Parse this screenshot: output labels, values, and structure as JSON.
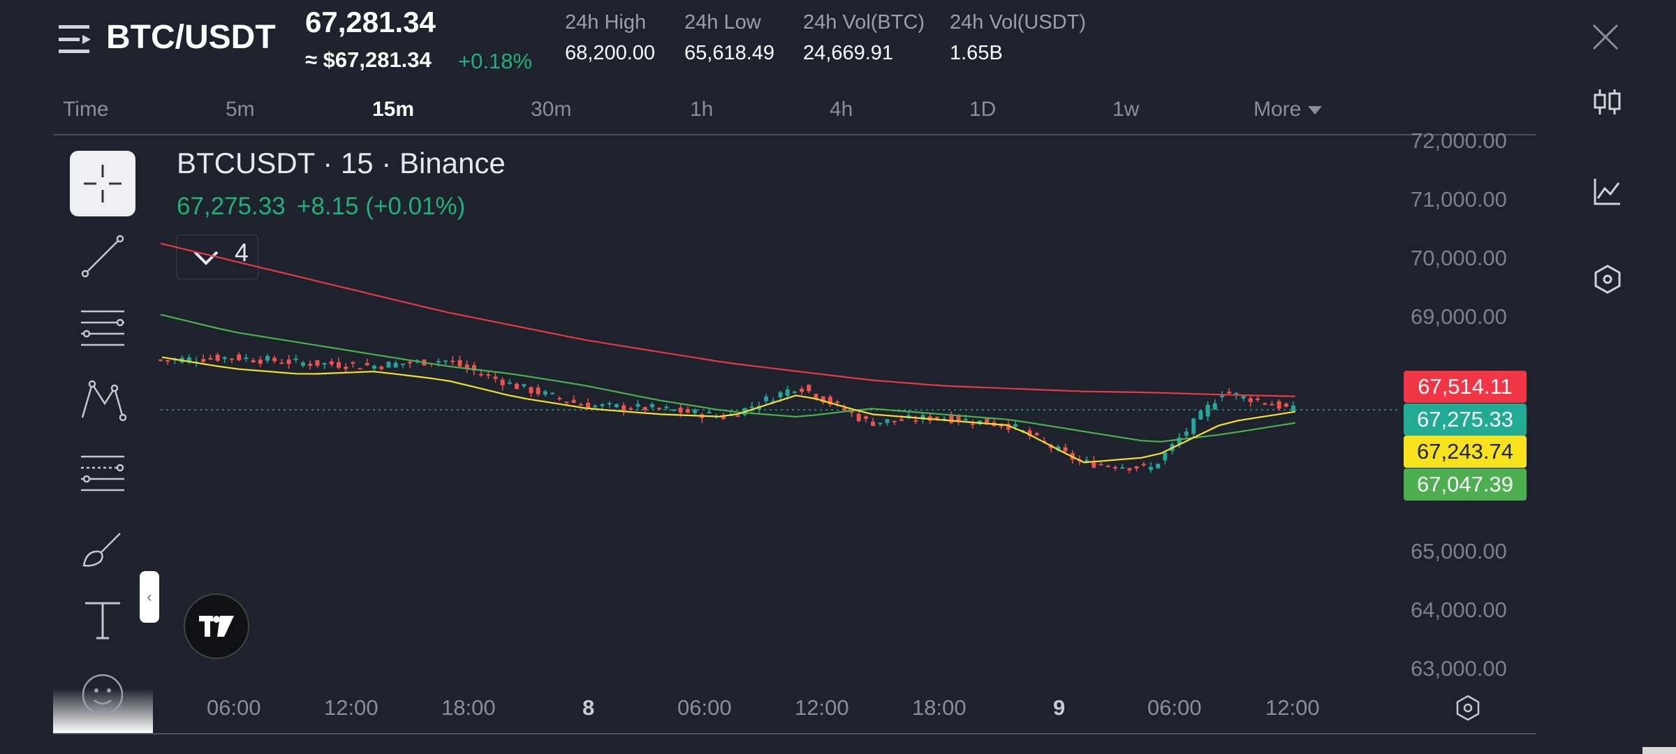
{
  "header": {
    "title": "BTC/USDT",
    "last_price": "67,281.34",
    "usd_price": "≈ $67,281.34",
    "change_pct": "+0.18%",
    "stats": [
      {
        "label": "24h High",
        "value": "68,200.00"
      },
      {
        "label": "24h Low",
        "value": "65,618.49"
      },
      {
        "label": "24h Vol(BTC)",
        "value": "24,669.91"
      },
      {
        "label": "24h Vol(USDT)",
        "value": "1.65B"
      }
    ]
  },
  "intervals": {
    "time_label": "Time",
    "items": [
      "5m",
      "15m",
      "30m",
      "1h",
      "4h",
      "1D",
      "1w"
    ],
    "active": "15m",
    "more_label": "More"
  },
  "chart_header": {
    "symbol": "BTCUSDT · 15 · Binance",
    "last": "67,275.33",
    "change": "+8.15 (+0.01%)",
    "indicator_count": "4"
  },
  "icons": {
    "menu": "menu-icon",
    "close": "close-icon",
    "candle": "candlestick-icon",
    "line_chart": "line-chart-icon",
    "settings": "settings-icon"
  },
  "colors": {
    "background": "#1e222d",
    "up": "#26a69a",
    "down": "#ef5350",
    "ma_red": "#e53946",
    "ma_green": "#4caf50",
    "ma_yellow": "#f5e12a"
  },
  "chart_data": {
    "type": "line",
    "title": "",
    "y_axis_labels": [
      "72,000.00",
      "71,000.00",
      "70,000.00",
      "69,000.00",
      "65,000.00",
      "64,000.00",
      "63,000.00"
    ],
    "ylim": [
      62700,
      72000
    ],
    "x_labels": [
      "06:00",
      "12:00",
      "18:00",
      "8",
      "06:00",
      "12:00",
      "18:00",
      "9",
      "06:00",
      "12:00"
    ],
    "price_tags": [
      {
        "value": "67,514.11",
        "color": "#f23645",
        "text_color": "#ffffff"
      },
      {
        "value": "67,275.33",
        "color": "#22ab94",
        "text_color": "#ffffff"
      },
      {
        "value": "67,243.74",
        "color": "#f7e21b",
        "text_color": "#1e222d"
      },
      {
        "value": "67,047.39",
        "color": "#4caf50",
        "text_color": "#ffffff"
      }
    ],
    "last_price": 67275.33,
    "series": [
      {
        "name": "MA red",
        "color": "#e53946",
        "values": [
          70200,
          69900,
          69600,
          69300,
          69000,
          68750,
          68500,
          68300,
          68100,
          67950,
          67800,
          67700,
          67650,
          67600,
          67580,
          67540,
          67514
        ]
      },
      {
        "name": "MA green",
        "color": "#4caf50",
        "values": [
          68950,
          68650,
          68450,
          68250,
          68050,
          67900,
          67700,
          67450,
          67250,
          67150,
          67300,
          67200,
          67100,
          66900,
          66700,
          66850,
          67047
        ]
      },
      {
        "name": "MA yellow",
        "color": "#f5e12a",
        "values": [
          68200,
          68000,
          67900,
          67950,
          67800,
          67500,
          67300,
          67200,
          67150,
          67550,
          67200,
          67100,
          67000,
          66350,
          66450,
          67050,
          67244
        ]
      }
    ],
    "close_series": [
      68150,
      68200,
      68100,
      68050,
      68150,
      67700,
      67350,
      67300,
      67150,
      67700,
      67050,
      67150,
      67000,
      66350,
      66250,
      67600,
      67275
    ]
  }
}
